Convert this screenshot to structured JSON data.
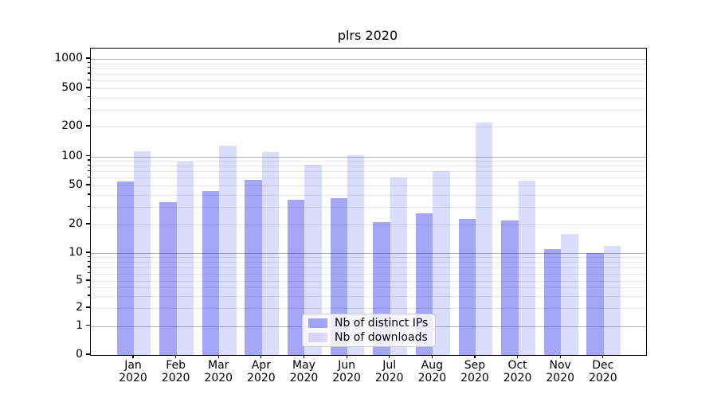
{
  "figure": {
    "title": "plrs 2020"
  },
  "legend": {
    "items": [
      {
        "label": "Nb of distinct IPs",
        "swatch": "rgba(40,40,235,0.41)"
      },
      {
        "label": "Nb of downloads",
        "swatch": "rgba(40,40,235,0.16)"
      }
    ]
  },
  "y_axis": {
    "tick_labels": [
      "0",
      "1",
      "2",
      "5",
      "10",
      "20",
      "50",
      "100",
      "200",
      "500",
      "1000"
    ]
  },
  "x_axis": {
    "tick_labels": [
      "Jan 2020",
      "Feb 2020",
      "Mar 2020",
      "Apr 2020",
      "May 2020",
      "Jun 2020",
      "Jul 2020",
      "Aug 2020",
      "Sep 2020",
      "Oct 2020",
      "Nov 2020",
      "Dec 2020"
    ]
  },
  "chart_data": {
    "type": "bar",
    "title": "plrs 2020",
    "categories": [
      "Jan 2020",
      "Feb 2020",
      "Mar 2020",
      "Apr 2020",
      "May 2020",
      "Jun 2020",
      "Jul 2020",
      "Aug 2020",
      "Sep 2020",
      "Oct 2020",
      "Nov 2020",
      "Dec 2020"
    ],
    "series": [
      {
        "name": "Nb of distinct IPs",
        "color": "rgba(40,40,235,0.41)",
        "values": [
          55,
          34,
          44,
          57,
          36,
          37,
          21,
          26,
          23,
          22,
          11,
          10
        ]
      },
      {
        "name": "Nb of downloads",
        "color": "rgba(40,40,235,0.16)",
        "values": [
          113,
          89,
          128,
          110,
          82,
          102,
          60,
          70,
          220,
          56,
          16,
          12
        ]
      }
    ],
    "yscale": "symlog",
    "yticks": [
      0,
      1,
      2,
      5,
      10,
      20,
      50,
      100,
      200,
      500,
      1000
    ],
    "minor_grid_values": [
      3,
      4,
      6,
      7,
      8,
      9,
      30,
      40,
      60,
      70,
      80,
      90,
      300,
      400,
      600,
      700,
      800,
      900
    ],
    "major_grid_values": [
      1,
      10,
      100,
      1000
    ],
    "ylim": [
      0,
      1320
    ],
    "grid": "horizontal",
    "legend_position": "lower center",
    "xlabel": "",
    "ylabel": ""
  }
}
